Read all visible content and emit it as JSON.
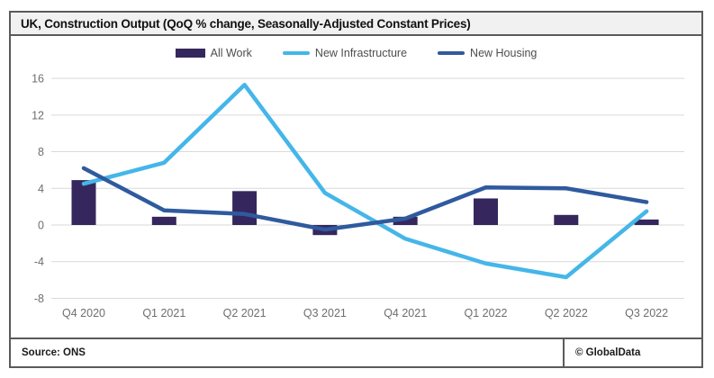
{
  "figure": {
    "title": "UK, Construction Output (QoQ % change, Seasonally-Adjusted Constant Prices)"
  },
  "footer": {
    "source": "Source:  ONS",
    "copyright": "© GlobalData"
  },
  "chart_data": {
    "type": "combo",
    "title": "UK, Construction Output (QoQ % change, Seasonally-Adjusted Constant Prices)",
    "categories": [
      "Q4 2020",
      "Q1 2021",
      "Q2 2021",
      "Q3 2021",
      "Q4 2021",
      "Q1 2022",
      "Q2 2022",
      "Q3 2022"
    ],
    "series": [
      {
        "name": "All Work",
        "type": "bar",
        "color": "#35275d",
        "values": [
          4.9,
          0.9,
          3.7,
          -1.1,
          0.9,
          2.9,
          1.1,
          0.6
        ]
      },
      {
        "name": "New Infrastructure",
        "type": "line",
        "color": "#45b6e8",
        "values": [
          4.5,
          6.8,
          15.3,
          3.5,
          -1.5,
          -4.2,
          -5.7,
          1.5
        ]
      },
      {
        "name": "New Housing",
        "type": "line",
        "color": "#2f5a9e",
        "values": [
          6.2,
          1.6,
          1.2,
          -0.5,
          0.7,
          4.1,
          4.0,
          2.5
        ]
      }
    ],
    "xlabel": "",
    "ylabel": "",
    "ylim": [
      -8,
      16
    ],
    "ytick_step": 4,
    "yticks": [
      -8,
      -4,
      0,
      4,
      8,
      12,
      16
    ],
    "grid": true,
    "legend_position": "top-center",
    "gridline_color": "#d9d9d9",
    "axis_label_color": "#6e6e6e"
  }
}
